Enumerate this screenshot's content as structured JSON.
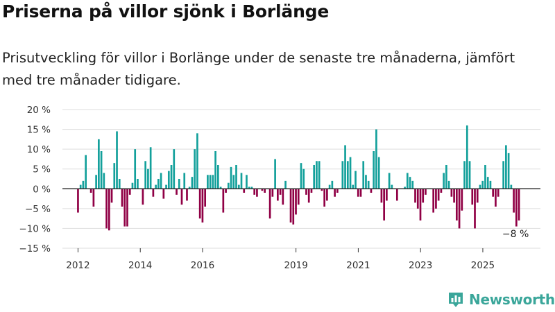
{
  "title": "Priserna på villor sjönk i Borlänge",
  "subtitle": "Prisutveckling för villor i Borlänge under de senaste tre månaderna, jämfört med tre månader tidigare.",
  "brand": "Newsworthy",
  "colors": {
    "positive": "#13a09b",
    "negative": "#900045",
    "grid": "#dddddd",
    "axis": "#333333",
    "brand": "#3aa69a"
  },
  "chart_data": {
    "type": "bar",
    "title": "Priserna på villor sjönk i Borlänge",
    "xlabel": "",
    "ylabel": "",
    "ylim": [
      -15,
      20
    ],
    "yticks": [
      -15,
      -10,
      -5,
      0,
      5,
      10,
      15,
      20
    ],
    "ytick_labels": [
      "−15 %",
      "−10 %",
      "−5 %",
      "0 %",
      "5 %",
      "10 %",
      "15 %",
      "20 %"
    ],
    "xlim": [
      2011.5,
      2026.85
    ],
    "xticks": [
      2012,
      2014,
      2016,
      2019,
      2021,
      2023,
      2025
    ],
    "xtick_labels": [
      "2012",
      "2014",
      "2016",
      "2019",
      "2021",
      "2023",
      "2025"
    ],
    "x_start": 2012.0,
    "x_step": 0.0833,
    "values": [
      -6,
      1,
      2,
      8.5,
      0,
      -1,
      -4.5,
      3.5,
      12.5,
      9.5,
      4,
      -10,
      -10.5,
      -3.5,
      6.5,
      14.5,
      2.5,
      -4.5,
      -9.5,
      -9.5,
      -1.5,
      1.5,
      10,
      2.5,
      0,
      -4,
      7,
      5,
      10.5,
      -2,
      1,
      2.5,
      4,
      -2.5,
      1,
      4.5,
      6,
      10,
      -1.5,
      2.5,
      -4,
      4,
      -3,
      0.5,
      3,
      10,
      14,
      -7.5,
      -8.5,
      -4.5,
      3.5,
      3.5,
      3.5,
      9.5,
      6,
      0.5,
      -6,
      -1,
      1.5,
      5.5,
      3.5,
      6,
      1,
      4,
      -1,
      3.5,
      0.5,
      0.5,
      -1.5,
      -2,
      0,
      -0.5,
      -1,
      0,
      -7.5,
      -2,
      7.5,
      -3,
      -1.5,
      -4,
      2,
      0,
      -8.5,
      -9,
      -6.5,
      -4,
      6.5,
      5,
      -1.5,
      -3.5,
      -1,
      6,
      7,
      7,
      -0.5,
      -4.5,
      -3,
      1,
      2,
      -2,
      -1,
      0,
      7,
      11,
      7,
      8,
      1,
      4.5,
      -2,
      -2,
      7,
      3.5,
      2,
      -1,
      9.5,
      15,
      8,
      -3.5,
      -8,
      -3,
      4,
      1,
      0,
      -3,
      0,
      0,
      0.5,
      4,
      3,
      2,
      -3.5,
      -5,
      -8,
      -3.5,
      -1.5,
      0,
      0,
      -6,
      -5,
      -3,
      -1,
      4,
      6,
      2,
      -2,
      -3.5,
      -8,
      -10,
      -5.5,
      7,
      16,
      7,
      -4,
      -10,
      -3.5,
      1,
      2,
      6,
      3,
      2,
      -2,
      -4.5,
      -2,
      0,
      7,
      11,
      9,
      1,
      -6,
      -9.5,
      -8
    ],
    "annotation": {
      "text": "−8 %",
      "value": -8,
      "position": "below-last-bar"
    }
  }
}
